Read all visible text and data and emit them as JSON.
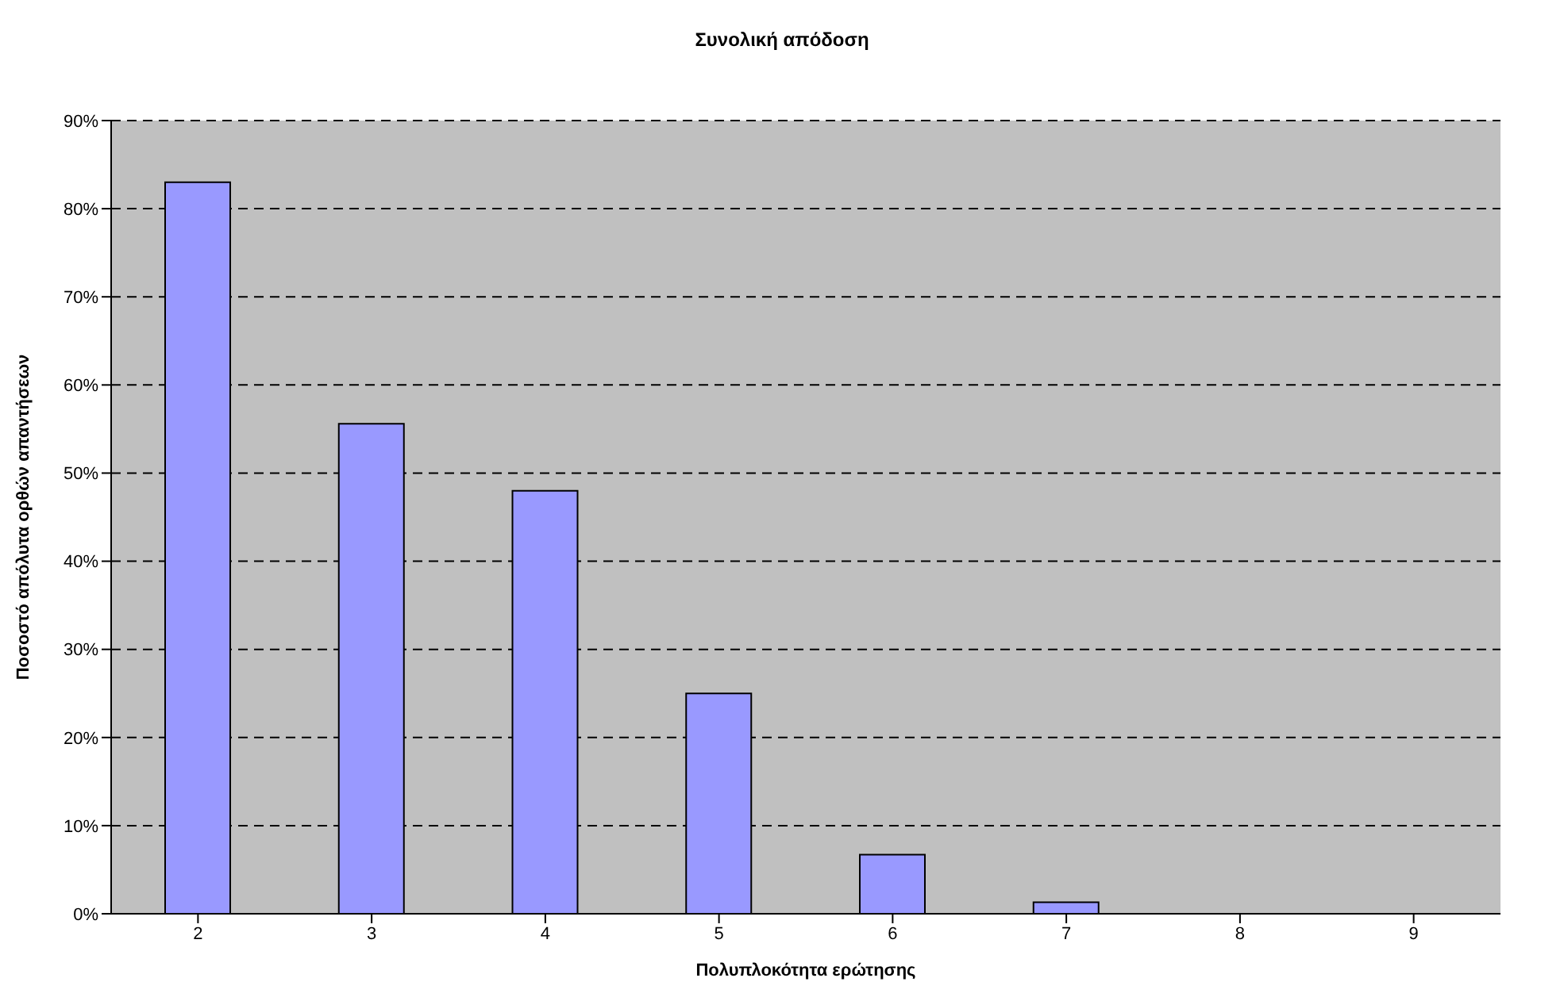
{
  "chart_data": {
    "type": "bar",
    "title": "Συνολική απόδοση",
    "xlabel": "Πολυπλοκότητα ερώτησης",
    "ylabel": "Ποσοστό απόλυτα ορθών απαντήσεων",
    "categories": [
      "2",
      "3",
      "4",
      "5",
      "6",
      "7",
      "8",
      "9"
    ],
    "values": [
      83,
      55.6,
      48,
      25,
      6.7,
      1.3,
      0,
      0
    ],
    "color": "#9999ff",
    "ylim": [
      0,
      90
    ],
    "yticks": [
      {
        "value": 0,
        "label": "0%"
      },
      {
        "value": 10,
        "label": "10%"
      },
      {
        "value": 20,
        "label": "20%"
      },
      {
        "value": 30,
        "label": "30%"
      },
      {
        "value": 40,
        "label": "40%"
      },
      {
        "value": 50,
        "label": "50%"
      },
      {
        "value": 60,
        "label": "60%"
      },
      {
        "value": 70,
        "label": "70%"
      },
      {
        "value": 80,
        "label": "80%"
      },
      {
        "value": 90,
        "label": "90%"
      }
    ],
    "grid": "y"
  }
}
